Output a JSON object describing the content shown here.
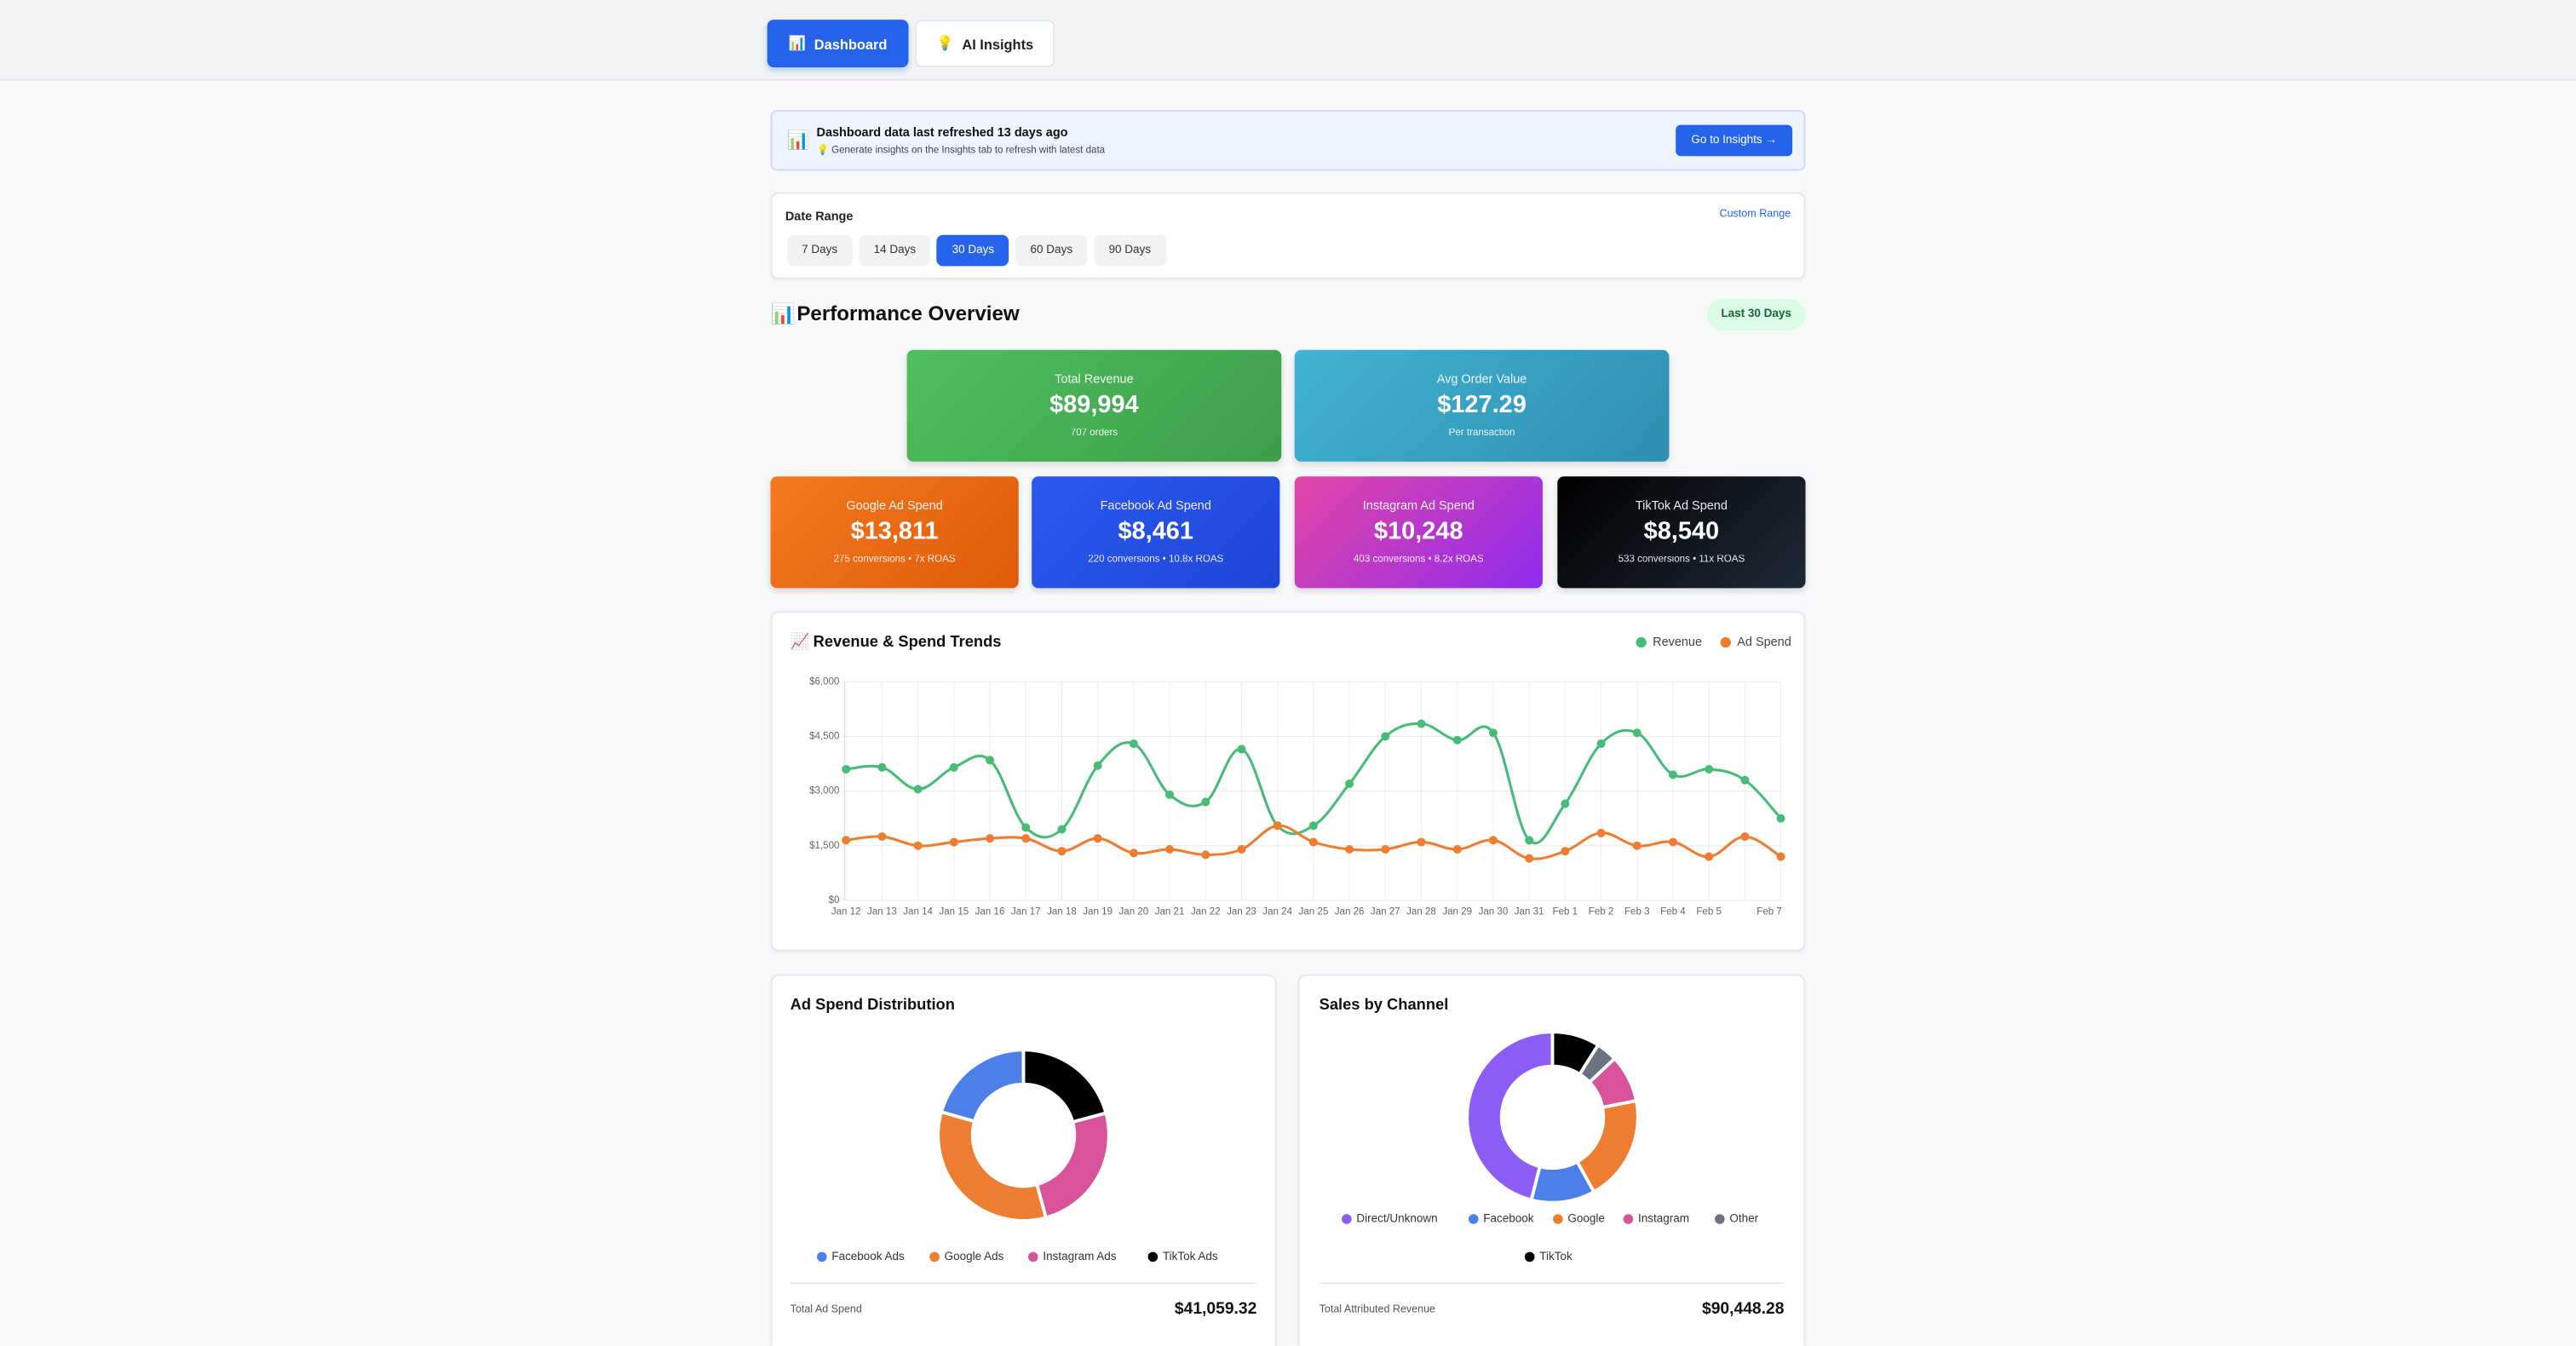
{
  "nav": {
    "tabs": [
      {
        "icon": "📊",
        "label": "Dashboard"
      },
      {
        "icon": "💡",
        "label": "AI Insights"
      }
    ],
    "active_tab": 0
  },
  "banner": {
    "icon": "📊",
    "title": "Dashboard data last refreshed 13 days ago",
    "subtitle": "💡 Generate insights on the Insights tab to refresh with latest data",
    "button": "Go to Insights →"
  },
  "date_range": {
    "label": "Date Range",
    "custom": "Custom Range",
    "options": [
      "7 Days",
      "14 Days",
      "30 Days",
      "60 Days",
      "90 Days"
    ],
    "selected": 2
  },
  "overview": {
    "icon": "📊",
    "title": "Performance Overview",
    "badge": "Last 30 Days"
  },
  "kpis": [
    {
      "label": "Total Revenue",
      "value": "$89,994",
      "note": "707 orders"
    },
    {
      "label": "Avg Order Value",
      "value": "$127.29",
      "note": "Per transaction"
    },
    {
      "label": "Google Ad Spend",
      "value": "$13,811",
      "note": "275 conversions • 7x ROAS"
    },
    {
      "label": "Facebook Ad Spend",
      "value": "$8,461",
      "note": "220 conversions • 10.8x ROAS"
    },
    {
      "label": "Instagram Ad Spend",
      "value": "$10,248",
      "note": "403 conversions • 8.2x ROAS"
    },
    {
      "label": "TikTok Ad Spend",
      "value": "$8,540",
      "note": "533 conversions • 11x ROAS"
    }
  ],
  "trends": {
    "type": "line",
    "icon": "📈",
    "title": "Revenue & Spend Trends",
    "categories": [
      "Jan 12",
      "Jan 13",
      "Jan 14",
      "Jan 15",
      "Jan 16",
      "Jan 17",
      "Jan 18",
      "Jan 19",
      "Jan 20",
      "Jan 21",
      "Jan 22",
      "Jan 23",
      "Jan 24",
      "Jan 25",
      "Jan 26",
      "Jan 27",
      "Jan 28",
      "Jan 29",
      "Jan 30",
      "Jan 31",
      "Feb 1",
      "Feb 2",
      "Feb 3",
      "Feb 4",
      "Feb 5",
      null,
      "Feb 7"
    ],
    "series": [
      {
        "name": "Revenue",
        "color": "#48bb78",
        "values": [
          3600,
          3650,
          3050,
          3650,
          3850,
          2000,
          1950,
          3700,
          4300,
          2900,
          2700,
          4150,
          2050,
          2050,
          3200,
          4500,
          4850,
          4400,
          4600,
          1650,
          2650,
          4300,
          4600,
          3450,
          3600,
          3300,
          2250
        ]
      },
      {
        "name": "Ad Spend",
        "color": "#ed7d31",
        "values": [
          1650,
          1750,
          1500,
          1600,
          1700,
          1700,
          1350,
          1700,
          1300,
          1400,
          1250,
          1400,
          2050,
          1600,
          1400,
          1400,
          1600,
          1400,
          1650,
          1150,
          1350,
          1850,
          1500,
          1600,
          1200,
          1750,
          1200
        ]
      }
    ],
    "ylim": [
      0,
      6000
    ],
    "yticks": [
      {
        "value": 0,
        "label": "$0"
      },
      {
        "value": 1500,
        "label": "$1,500"
      },
      {
        "value": 3000,
        "label": "$3,000"
      },
      {
        "value": 4500,
        "label": "$4,500"
      },
      {
        "value": 6000,
        "label": "$6,000"
      }
    ],
    "grid": true
  },
  "donuts": [
    {
      "type": "doughnut",
      "title": "Ad Spend Distribution",
      "categories": [
        "Facebook Ads",
        "Google Ads",
        "Instagram Ads",
        "TikTok Ads"
      ],
      "values": [
        8461,
        13811,
        10248,
        8540
      ],
      "colors": [
        "#4c7fe8",
        "#ed7d31",
        "#d9539a",
        "#000000"
      ],
      "total_label": "Total Ad Spend",
      "total": "$41,059.32"
    },
    {
      "type": "doughnut",
      "title": "Sales by Channel",
      "categories": [
        "Direct/Unknown",
        "Facebook",
        "Google",
        "Instagram",
        "Other",
        "TikTok"
      ],
      "values": [
        41600,
        10900,
        18100,
        8100,
        3600,
        8100
      ],
      "colors": [
        "#8b5cf6",
        "#4c7fe8",
        "#ed7d31",
        "#d9539a",
        "#6b7280",
        "#000000"
      ],
      "total_label": "Total Attributed Revenue",
      "total": "$90,448.28"
    }
  ]
}
